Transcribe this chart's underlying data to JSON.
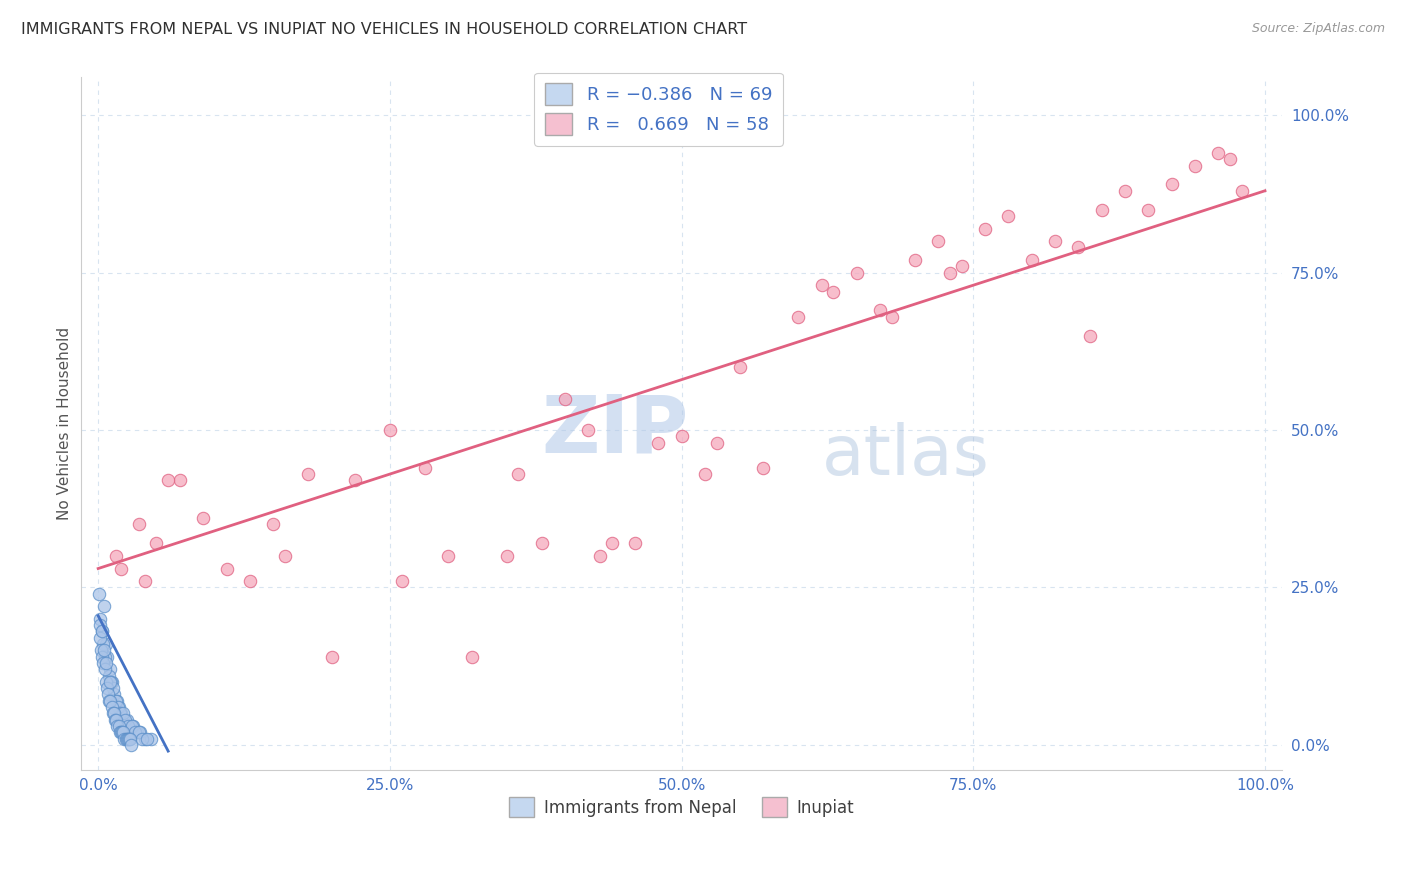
{
  "title": "IMMIGRANTS FROM NEPAL VS INUPIAT NO VEHICLES IN HOUSEHOLD CORRELATION CHART",
  "source": "Source: ZipAtlas.com",
  "ylabel": "No Vehicles in Household",
  "ytick_values": [
    0,
    25,
    50,
    75,
    100
  ],
  "xtick_values": [
    0,
    25,
    50,
    75,
    100
  ],
  "legend_labels": [
    "Immigrants from Nepal",
    "Inupiat"
  ],
  "nepal_R": -0.386,
  "nepal_N": 69,
  "inupiat_R": 0.669,
  "inupiat_N": 58,
  "nepal_color": "#aac4e8",
  "inupiat_color": "#f5a8bc",
  "nepal_edge_color": "#5b8fc9",
  "inupiat_edge_color": "#e06080",
  "nepal_line_color": "#4472c4",
  "inupiat_line_color": "#e06080",
  "legend_box_nepal": "#c5d8f0",
  "legend_box_inupiat": "#f5c0d0",
  "watermark_zip_color": "#c8d8ee",
  "watermark_atlas_color": "#a8c0dc",
  "background_color": "#ffffff",
  "grid_color": "#d8e4f0",
  "title_color": "#303030",
  "axis_color": "#555555",
  "tick_color": "#4472c4",
  "nepal_scatter_x": [
    0.3,
    0.5,
    0.7,
    0.8,
    1.0,
    1.2,
    1.4,
    1.6,
    1.8,
    2.0,
    2.2,
    2.5,
    2.8,
    3.0,
    3.3,
    3.6,
    4.0,
    4.5,
    0.2,
    0.4,
    0.6,
    0.9,
    1.1,
    1.3,
    1.5,
    1.7,
    1.9,
    2.1,
    2.3,
    2.6,
    2.9,
    3.2,
    3.5,
    3.8,
    4.2,
    0.15,
    0.25,
    0.35,
    0.45,
    0.55,
    0.65,
    0.75,
    0.85,
    0.95,
    1.05,
    1.15,
    1.25,
    1.35,
    1.45,
    1.55,
    1.65,
    1.75,
    1.85,
    1.95,
    2.05,
    2.15,
    2.25,
    2.35,
    2.45,
    2.55,
    2.65,
    2.75,
    2.85,
    0.1,
    0.2,
    0.3,
    0.5,
    0.7,
    1.0
  ],
  "nepal_scatter_y": [
    18,
    22,
    16,
    14,
    12,
    10,
    8,
    7,
    6,
    5,
    4,
    4,
    3,
    3,
    2,
    2,
    1,
    1,
    20,
    16,
    14,
    11,
    10,
    9,
    7,
    6,
    5,
    5,
    4,
    3,
    3,
    2,
    2,
    1,
    1,
    17,
    15,
    14,
    13,
    12,
    10,
    9,
    8,
    7,
    7,
    6,
    5,
    5,
    4,
    4,
    3,
    3,
    2,
    2,
    2,
    2,
    1,
    1,
    1,
    1,
    1,
    1,
    0,
    24,
    19,
    18,
    15,
    13,
    10
  ],
  "inupiat_scatter_x": [
    1.5,
    2.0,
    3.5,
    5.0,
    7.0,
    9.0,
    11.0,
    13.0,
    15.0,
    18.0,
    20.0,
    22.0,
    25.0,
    28.0,
    30.0,
    32.0,
    35.0,
    38.0,
    40.0,
    42.0,
    44.0,
    46.0,
    48.0,
    50.0,
    52.0,
    55.0,
    57.0,
    60.0,
    62.0,
    65.0,
    67.0,
    70.0,
    72.0,
    74.0,
    76.0,
    78.0,
    80.0,
    82.0,
    84.0,
    86.0,
    88.0,
    90.0,
    92.0,
    94.0,
    96.0,
    98.0,
    4.0,
    6.0,
    16.0,
    26.0,
    36.0,
    43.0,
    53.0,
    63.0,
    68.0,
    73.0,
    85.0,
    97.0
  ],
  "inupiat_scatter_y": [
    30,
    28,
    35,
    32,
    42,
    36,
    28,
    26,
    35,
    43,
    14,
    42,
    50,
    44,
    30,
    14,
    30,
    32,
    55,
    50,
    32,
    32,
    48,
    49,
    43,
    60,
    44,
    68,
    73,
    75,
    69,
    77,
    80,
    76,
    82,
    84,
    77,
    80,
    79,
    85,
    88,
    85,
    89,
    92,
    94,
    88,
    26,
    42,
    30,
    26,
    43,
    30,
    48,
    72,
    68,
    75,
    65,
    93
  ],
  "nepal_line_x": [
    0.0,
    6.0
  ],
  "nepal_line_y": [
    20.5,
    -1.0
  ],
  "inupiat_line_x": [
    0.0,
    100.0
  ],
  "inupiat_line_y": [
    28.0,
    88.0
  ]
}
